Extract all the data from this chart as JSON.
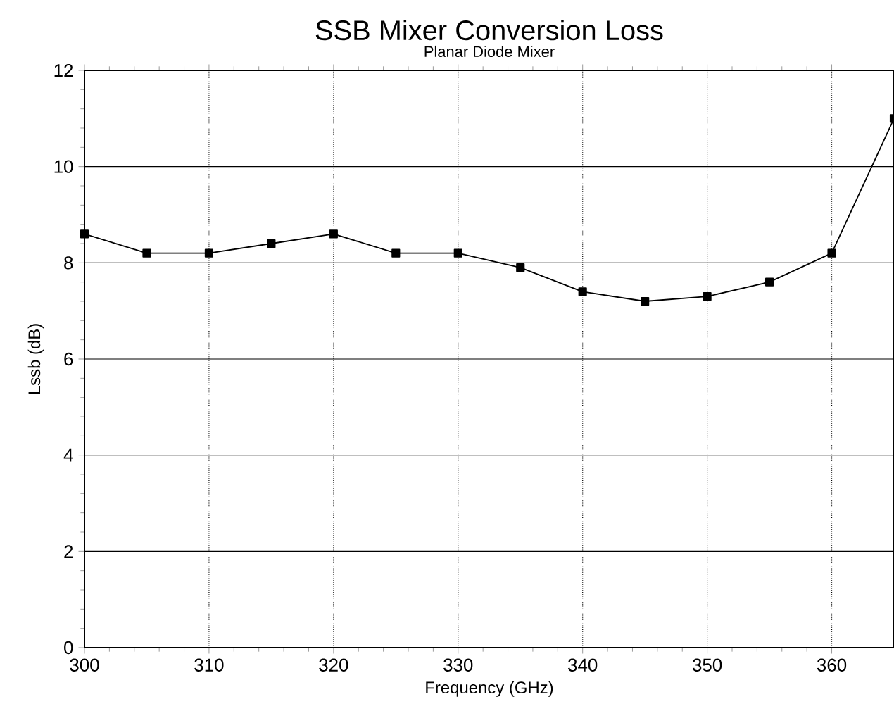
{
  "chart_data": {
    "type": "line",
    "title": "SSB Mixer Conversion Loss",
    "subtitle": "Planar Diode Mixer",
    "xlabel": "Frequency (GHz)",
    "ylabel": "Lssb (dB)",
    "x": [
      300,
      305,
      310,
      315,
      320,
      325,
      330,
      335,
      340,
      345,
      350,
      355,
      360,
      365
    ],
    "series": [
      {
        "color": "#000000",
        "values": [
          8.6,
          8.2,
          8.2,
          8.4,
          8.6,
          8.2,
          8.2,
          7.9,
          7.4,
          7.2,
          7.3,
          7.6,
          8.2,
          11.0
        ]
      }
    ],
    "xlim": [
      300,
      365
    ],
    "ylim": [
      0,
      12
    ],
    "xticks": [
      300,
      310,
      320,
      330,
      340,
      350,
      360
    ],
    "yticks": [
      0,
      2,
      4,
      6,
      8,
      10,
      12
    ],
    "grid": true,
    "marker": "square",
    "line_style": "solid"
  }
}
